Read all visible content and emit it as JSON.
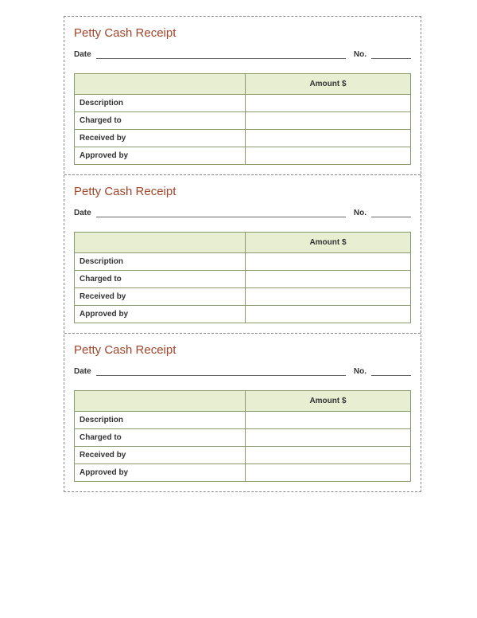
{
  "receipts": [
    {
      "title": "Petty Cash Receipt",
      "date_label": "Date",
      "no_label": "No.",
      "amount_header": "Amount $",
      "rows": [
        {
          "label": "Description",
          "value": ""
        },
        {
          "label": "Charged to",
          "value": ""
        },
        {
          "label": "Received by",
          "value": ""
        },
        {
          "label": "Approved by",
          "value": ""
        }
      ]
    },
    {
      "title": "Petty Cash Receipt",
      "date_label": "Date",
      "no_label": "No.",
      "amount_header": "Amount $",
      "rows": [
        {
          "label": "Description",
          "value": ""
        },
        {
          "label": "Charged to",
          "value": ""
        },
        {
          "label": "Received by",
          "value": ""
        },
        {
          "label": "Approved by",
          "value": ""
        }
      ]
    },
    {
      "title": "Petty Cash Receipt",
      "date_label": "Date",
      "no_label": "No.",
      "amount_header": "Amount $",
      "rows": [
        {
          "label": "Description",
          "value": ""
        },
        {
          "label": "Charged to",
          "value": ""
        },
        {
          "label": "Received by",
          "value": ""
        },
        {
          "label": "Approved by",
          "value": ""
        }
      ]
    }
  ],
  "colors": {
    "title": "#a0442a",
    "header_bg": "#e8eed2",
    "border": "#8a9a6e",
    "dash_border": "#888888",
    "text": "#333333"
  }
}
